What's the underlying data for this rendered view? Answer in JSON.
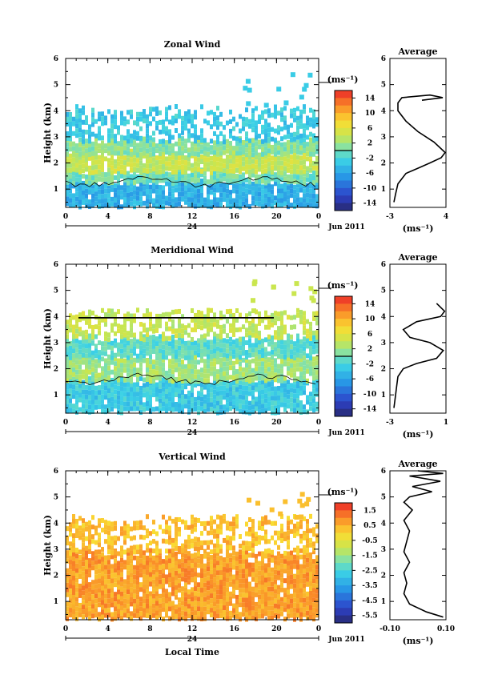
{
  "chart_data": [
    {
      "type": "heatmap",
      "title": "Zonal Wind",
      "ylabel": "Height (km)",
      "ylim": [
        0.3,
        6
      ],
      "yticks": [
        "1",
        "2",
        "3",
        "4",
        "5",
        "6"
      ],
      "xticks": [
        "0",
        "4",
        "8",
        "12",
        "16",
        "20",
        "0"
      ],
      "day_label": "24",
      "date_label": "Jun 2011",
      "colorbar": {
        "unit": "(ms⁻¹)",
        "ticks": [
          "14",
          "10",
          "6",
          "2",
          "-2",
          "-6",
          "-10",
          "-14"
        ],
        "range": [
          -16,
          16
        ]
      },
      "layers": [
        {
          "from_h": 0.4,
          "to_h": 1.3,
          "value": -5
        },
        {
          "from_h": 1.3,
          "to_h": 1.7,
          "value": 0
        },
        {
          "from_h": 1.7,
          "to_h": 2.4,
          "value": 4
        },
        {
          "from_h": 2.4,
          "to_h": 2.9,
          "value": 1
        },
        {
          "from_h": 2.9,
          "to_h": 4.1,
          "value": -3
        }
      ],
      "average": {
        "title": "Average",
        "xlabel": "(ms⁻¹)",
        "xlim": [
          -3,
          4
        ],
        "xticks": [
          "-3",
          "4"
        ],
        "yticks": [
          "1",
          "2",
          "3",
          "4",
          "5",
          "6"
        ],
        "x": [
          -2.5,
          -2.3,
          -2.0,
          -1.0,
          0.5,
          2.0,
          3.4,
          3.9,
          2.5,
          0.5,
          -1.0,
          -2.0,
          -2.0,
          -1.5,
          2.0,
          3.6,
          1.0
        ],
        "y": [
          0.5,
          0.8,
          1.2,
          1.6,
          1.8,
          2.0,
          2.2,
          2.4,
          2.8,
          3.2,
          3.6,
          4.0,
          4.3,
          4.5,
          4.6,
          4.5,
          4.4
        ]
      }
    },
    {
      "type": "heatmap",
      "title": "Meridional Wind",
      "ylabel": "Height (km)",
      "ylim": [
        0.3,
        6
      ],
      "yticks": [
        "1",
        "2",
        "3",
        "4",
        "5",
        "6"
      ],
      "xticks": [
        "0",
        "4",
        "8",
        "12",
        "16",
        "20",
        "0"
      ],
      "day_label": "24",
      "date_label": "Jun 2011",
      "colorbar": {
        "unit": "(ms⁻¹)",
        "ticks": [
          "14",
          "10",
          "6",
          "2",
          "-2",
          "-6",
          "-10",
          "-14"
        ],
        "range": [
          -16,
          16
        ]
      },
      "layers": [
        {
          "from_h": 0.4,
          "to_h": 1.6,
          "value": -3
        },
        {
          "from_h": 1.6,
          "to_h": 2.5,
          "value": 2
        },
        {
          "from_h": 2.5,
          "to_h": 3.2,
          "value": -1
        },
        {
          "from_h": 3.2,
          "to_h": 4.2,
          "value": 4
        }
      ],
      "average": {
        "title": "Average",
        "xlabel": "(ms⁻¹)",
        "xlim": [
          -3,
          1.2
        ],
        "xticks": [
          "-3",
          "1"
        ],
        "yticks": [
          "1",
          "2",
          "3",
          "4",
          "5",
          "6"
        ],
        "x": [
          -2.7,
          -2.6,
          -2.5,
          -2.4,
          -2.0,
          -1.0,
          0.5,
          1.0,
          0.0,
          -1.5,
          -2.0,
          -1.0,
          0.8,
          1.1,
          0.5
        ],
        "y": [
          0.5,
          0.9,
          1.3,
          1.7,
          2.0,
          2.2,
          2.4,
          2.7,
          3.0,
          3.2,
          3.5,
          3.8,
          4.0,
          4.2,
          4.5
        ]
      }
    },
    {
      "type": "heatmap",
      "title": "Vertical Wind",
      "ylabel": "Height (km)",
      "ylim": [
        0.3,
        6
      ],
      "yticks": [
        "1",
        "2",
        "3",
        "4",
        "5",
        "6"
      ],
      "xticks": [
        "0",
        "4",
        "8",
        "12",
        "16",
        "20",
        "0"
      ],
      "day_label": "24",
      "date_label": "Jun 2011",
      "xlabel": "Local Time",
      "colorbar": {
        "unit": "(ms⁻¹)",
        "ticks": [
          "1.5",
          "0.5",
          "-0.5",
          "-1.5",
          "-2.5",
          "-3.5",
          "-4.5",
          "-5.5"
        ],
        "range": [
          -6,
          2
        ]
      },
      "layers": [
        {
          "from_h": 0.4,
          "to_h": 2.9,
          "value": 0.7
        },
        {
          "from_h": 2.9,
          "to_h": 4.2,
          "value": 0.3
        }
      ],
      "average": {
        "title": "Average",
        "xlabel": "(ms⁻¹)",
        "xlim": [
          -0.1,
          0.1
        ],
        "xticks": [
          "-0.10",
          "0.10"
        ],
        "yticks": [
          "1",
          "2",
          "3",
          "4",
          "5",
          "6"
        ],
        "x": [
          0.09,
          0.03,
          -0.03,
          -0.05,
          -0.04,
          -0.05,
          -0.03,
          -0.05,
          -0.04,
          -0.03,
          -0.05,
          -0.02,
          -0.05,
          -0.03,
          0.05,
          -0.02,
          0.08,
          -0.03,
          0.09,
          0.0
        ],
        "y": [
          0.4,
          0.6,
          0.9,
          1.3,
          1.7,
          2.1,
          2.5,
          2.9,
          3.3,
          3.7,
          4.1,
          4.5,
          4.8,
          5.0,
          5.2,
          5.4,
          5.6,
          5.8,
          5.9,
          6.0
        ]
      }
    }
  ]
}
